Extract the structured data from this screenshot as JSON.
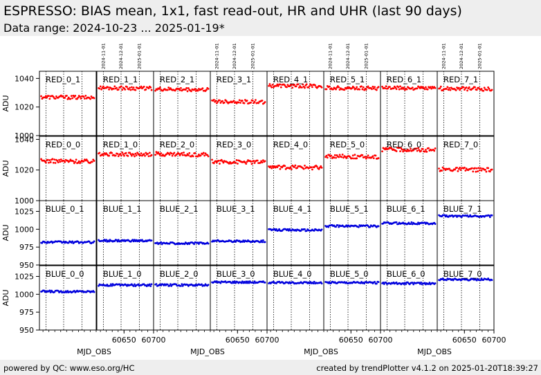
{
  "header": {
    "title": "ESPRESSO: BIAS mean, 1x1, fast read-out, HR and UHR (last 90 days)",
    "subtitle": "Data range: 2024-10-23 ... 2025-01-19*"
  },
  "footer": {
    "left": "powered by QC: www.eso.org/HC",
    "right": "created by trendPlotter v4.1.2 on 2025-01-20T18:39:27"
  },
  "colors": {
    "red": "#ff0000",
    "blue": "#0000dd",
    "header_bg": "#eeeeee"
  },
  "chart_data": {
    "type": "scatter",
    "layout": "grid-4x8",
    "x_label": "MJD_OBS",
    "y_label": "ADU",
    "xlim": [
      60604,
      60700
    ],
    "x_ticks": [
      60650,
      60700
    ],
    "x_tick_labels": [
      "60650",
      "60700"
    ],
    "date_markers": [
      {
        "x": 60615,
        "label": "2024-11-01"
      },
      {
        "x": 60645,
        "label": "2024-12-01"
      },
      {
        "x": 60676,
        "label": "2025-01-01"
      }
    ],
    "x_tick_columns": [
      1,
      3,
      5,
      7
    ],
    "date_label_columns": [
      1,
      3,
      5,
      7
    ],
    "grid_vertical_lines_at_dates": true,
    "rows": [
      {
        "color": "red",
        "ylim": [
          1000,
          1045
        ],
        "y_ticks": [
          1000,
          1020,
          1040
        ],
        "panels": [
          {
            "label": "RED_0_1",
            "level": 1027.0
          },
          {
            "label": "RED_1_1",
            "level": 1033.5
          },
          {
            "label": "RED_2_1",
            "level": 1032.5
          },
          {
            "label": "RED_3_1",
            "level": 1024.0
          },
          {
            "label": "RED_4_1",
            "level": 1035.0
          },
          {
            "label": "RED_5_1",
            "level": 1033.5
          },
          {
            "label": "RED_6_1",
            "level": 1033.5
          },
          {
            "label": "RED_7_1",
            "level": 1033.0
          }
        ]
      },
      {
        "color": "red",
        "ylim": [
          1000,
          1042
        ],
        "y_ticks": [
          1000,
          1020,
          1040
        ],
        "panels": [
          {
            "label": "RED_0_0",
            "level": 1026.0
          },
          {
            "label": "RED_1_0",
            "level": 1030.5
          },
          {
            "label": "RED_2_0",
            "level": 1030.5
          },
          {
            "label": "RED_3_0",
            "level": 1025.5
          },
          {
            "label": "RED_4_0",
            "level": 1022.0
          },
          {
            "label": "RED_5_0",
            "level": 1029.0
          },
          {
            "label": "RED_6_0",
            "level": 1033.5
          },
          {
            "label": "RED_7_0",
            "level": 1020.5
          }
        ]
      },
      {
        "color": "blue",
        "ylim": [
          950,
          1040
        ],
        "y_ticks": [
          950,
          975,
          1000,
          1025
        ],
        "panels": [
          {
            "label": "BLUE_0_1",
            "level": 982.0
          },
          {
            "label": "BLUE_1_1",
            "level": 984.0
          },
          {
            "label": "BLUE_2_1",
            "level": 980.5
          },
          {
            "label": "BLUE_3_1",
            "level": 983.5
          },
          {
            "label": "BLUE_4_1",
            "level": 999.0
          },
          {
            "label": "BLUE_5_1",
            "level": 1004.5
          },
          {
            "label": "BLUE_6_1",
            "level": 1008.5
          },
          {
            "label": "BLUE_7_1",
            "level": 1018.5
          }
        ]
      },
      {
        "color": "blue",
        "ylim": [
          950,
          1040
        ],
        "y_ticks": [
          950,
          975,
          1000,
          1025
        ],
        "panels": [
          {
            "label": "BLUE_0_0",
            "level": 1004.0
          },
          {
            "label": "BLUE_1_0",
            "level": 1013.0
          },
          {
            "label": "BLUE_2_0",
            "level": 1013.0
          },
          {
            "label": "BLUE_3_0",
            "level": 1017.0
          },
          {
            "label": "BLUE_4_0",
            "level": 1016.5
          },
          {
            "label": "BLUE_5_0",
            "level": 1016.5
          },
          {
            "label": "BLUE_6_0",
            "level": 1015.5
          },
          {
            "label": "BLUE_7_0",
            "level": 1021.0
          }
        ]
      }
    ]
  }
}
